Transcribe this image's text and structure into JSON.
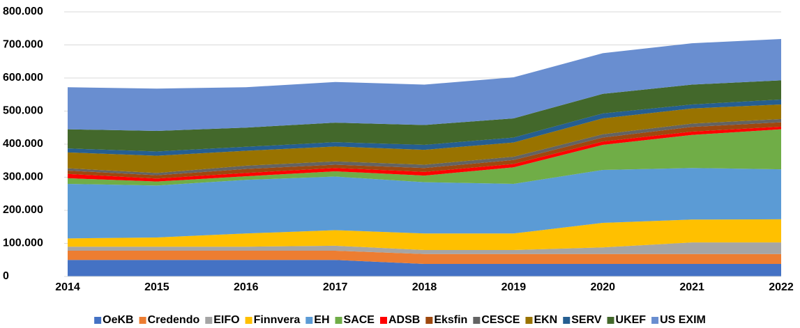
{
  "chart_data": {
    "type": "area",
    "stacked": true,
    "categories": [
      "2014",
      "2015",
      "2016",
      "2017",
      "2018",
      "2019",
      "2020",
      "2021",
      "2022"
    ],
    "ylim": [
      0,
      800000
    ],
    "yticks": [
      0,
      {
        "value": 100000,
        "label": "100.000"
      },
      {
        "value": 200000,
        "label": "200.000"
      },
      {
        "value": 300000,
        "label": "300.000"
      },
      {
        "value": 400000,
        "label": "400.000"
      },
      {
        "value": 500000,
        "label": "500.000"
      },
      {
        "value": 600000,
        "label": "600.000"
      },
      {
        "value": 700000,
        "label": "700.000"
      },
      {
        "value": 800000,
        "label": "800.000"
      }
    ],
    "grid": true,
    "legend": "bottom",
    "series": [
      {
        "name": "OeKB",
        "color": "#4472c4",
        "values": [
          50000,
          50000,
          50000,
          50000,
          38000,
          38000,
          38000,
          38000,
          38000
        ]
      },
      {
        "name": "Credendo",
        "color": "#ed7d31",
        "values": [
          28000,
          28000,
          28000,
          28000,
          30000,
          30000,
          30000,
          30000,
          30000
        ]
      },
      {
        "name": "EIFO",
        "color": "#a5a5a5",
        "values": [
          12000,
          12000,
          12000,
          15000,
          12000,
          12000,
          20000,
          35000,
          35000
        ]
      },
      {
        "name": "Finnvera",
        "color": "#ffc000",
        "values": [
          25000,
          28000,
          40000,
          47000,
          50000,
          50000,
          74000,
          69000,
          70000
        ]
      },
      {
        "name": "EH",
        "color": "#5b9bd5",
        "values": [
          165000,
          157000,
          162000,
          162000,
          155000,
          150000,
          160000,
          156000,
          151000
        ]
      },
      {
        "name": "SACE",
        "color": "#70ad47",
        "values": [
          17000,
          12000,
          11000,
          16000,
          20000,
          50000,
          76000,
          100000,
          121000
        ]
      },
      {
        "name": "ADSB",
        "color": "#ff0000",
        "values": [
          13000,
          9000,
          10000,
          10000,
          11000,
          10000,
          10000,
          10000,
          8000
        ]
      },
      {
        "name": "Eksfin",
        "color": "#9e480e",
        "values": [
          10000,
          10000,
          12000,
          10000,
          12000,
          12000,
          12000,
          14000,
          13000
        ]
      },
      {
        "name": "CESCE",
        "color": "#636363",
        "values": [
          7000,
          7000,
          10000,
          10000,
          10000,
          10000,
          10000,
          10000,
          10000
        ]
      },
      {
        "name": "EKN",
        "color": "#997300",
        "values": [
          48000,
          52000,
          45000,
          45000,
          45000,
          43000,
          48000,
          46000,
          44000
        ]
      },
      {
        "name": "SERV",
        "color": "#255e91",
        "values": [
          12000,
          13000,
          12000,
          13000,
          15000,
          15000,
          15000,
          12000,
          15000
        ]
      },
      {
        "name": "UKEF",
        "color": "#43682b",
        "values": [
          58000,
          62000,
          58000,
          59000,
          60000,
          58000,
          59000,
          60000,
          58000
        ]
      },
      {
        "name": "US EXIM",
        "color": "#698ed0",
        "values": [
          127000,
          128000,
          122000,
          123000,
          122000,
          124000,
          123000,
          125000,
          125000
        ]
      }
    ]
  }
}
